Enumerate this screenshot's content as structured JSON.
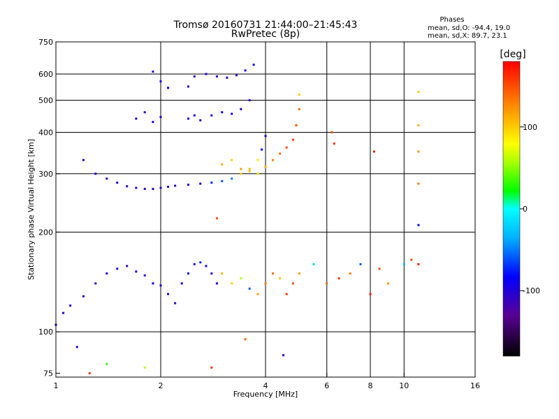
{
  "chart_data": {
    "type": "scatter",
    "title": "Tromsø 20160731 21:44:00–21:45:43",
    "subtitle": "RwPretec (8p)",
    "stats": {
      "header": "Phases",
      "line_o": "mean, sd,O: -94.4, 19.0",
      "line_x": "mean, sd,X:  89.7, 23.1"
    },
    "xlabel": "Frequency [MHz]",
    "ylabel": "Stationary phase Virtual Height [km]",
    "x_scale": "log",
    "y_scale": "log",
    "xlim": [
      1,
      16
    ],
    "ylim": [
      73,
      750
    ],
    "x_ticks": [
      1,
      2,
      4,
      6,
      8,
      10,
      16
    ],
    "x_tick_labels": [
      "1",
      "2",
      "4",
      "6",
      "8",
      "10",
      "16"
    ],
    "y_ticks": [
      75,
      100,
      200,
      300,
      400,
      500,
      600,
      750
    ],
    "y_tick_labels": [
      "75",
      "100",
      "200",
      "300",
      "400",
      "500",
      "600",
      "750"
    ],
    "x_grid": [
      2,
      4,
      6,
      8,
      10
    ],
    "y_grid": [
      100,
      200,
      300,
      400,
      500,
      600
    ],
    "colorbar": {
      "label": "[deg]",
      "range": [
        -180,
        180
      ],
      "ticks": [
        100,
        0,
        -100
      ],
      "tick_labels": [
        "100",
        "0",
        "-100"
      ]
    },
    "series": [
      {
        "x": [
          1.0,
          1.05,
          1.1,
          1.2,
          1.3,
          1.4,
          1.5,
          1.6,
          1.7,
          1.8,
          1.9,
          2.0,
          2.1,
          2.2,
          2.3,
          2.4,
          2.5,
          2.6,
          2.7,
          2.8,
          2.9
        ],
        "y": [
          105,
          114,
          120,
          128,
          140,
          150,
          155,
          158,
          152,
          148,
          140,
          138,
          130,
          122,
          140,
          150,
          160,
          162,
          158,
          150,
          140
        ],
        "phase": [
          -95,
          -100,
          -90,
          -100,
          -105,
          -98,
          -92,
          -110,
          -96,
          -100,
          -88,
          -95,
          -100,
          -102,
          -90,
          -85,
          -80,
          -70,
          -95,
          -100,
          -90
        ]
      },
      {
        "x": [
          1.2,
          1.3,
          1.4,
          1.5,
          1.6,
          1.7,
          1.8,
          1.9,
          2.0,
          2.1,
          2.2,
          2.4,
          2.6,
          2.8,
          3.0,
          3.2,
          3.4,
          3.6,
          3.8,
          3.9,
          4.0
        ],
        "y": [
          330,
          300,
          290,
          282,
          275,
          272,
          270,
          270,
          272,
          274,
          276,
          278,
          280,
          282,
          285,
          290,
          300,
          310,
          330,
          355,
          390
        ],
        "phase": [
          -100,
          -98,
          -102,
          -95,
          -100,
          -97,
          -104,
          -99,
          -96,
          -98,
          -100,
          -95,
          -90,
          -70,
          -60,
          -50,
          100,
          110,
          90,
          -80,
          -95
        ]
      },
      {
        "x": [
          1.9,
          2.0,
          2.1,
          2.4,
          2.5,
          2.7,
          2.9,
          3.1,
          3.3,
          3.5,
          3.7
        ],
        "y": [
          610,
          570,
          545,
          550,
          590,
          600,
          590,
          585,
          595,
          615,
          640
        ],
        "phase": [
          -100,
          -95,
          -90,
          -100,
          -105,
          -98,
          -90,
          -95,
          -100,
          -92,
          -96
        ]
      },
      {
        "x": [
          1.7,
          1.8,
          1.9,
          2.0,
          2.4,
          2.5,
          2.6,
          2.8,
          3.0,
          3.2,
          3.4,
          3.6
        ],
        "y": [
          440,
          460,
          430,
          445,
          440,
          450,
          435,
          450,
          460,
          455,
          470,
          500
        ],
        "phase": [
          -95,
          -100,
          -92,
          -98,
          -90,
          -95,
          -100,
          -90,
          -85,
          -92,
          -96,
          -100
        ]
      },
      {
        "x": [
          3.0,
          3.2,
          3.4,
          3.6,
          3.8,
          4.0,
          4.2,
          4.4,
          4.6,
          4.8,
          4.9,
          5.0,
          5.0
        ],
        "y": [
          320,
          330,
          310,
          305,
          300,
          315,
          330,
          345,
          360,
          380,
          420,
          470,
          520
        ],
        "phase": [
          110,
          100,
          120,
          105,
          90,
          110,
          130,
          140,
          150,
          160,
          150,
          140,
          100
        ]
      },
      {
        "x": [
          3.0,
          3.2,
          3.4,
          3.6,
          3.8,
          4.0,
          4.2,
          4.4,
          4.6,
          4.8,
          5.0,
          5.5,
          6.0,
          6.5,
          7.0,
          7.5,
          8.0,
          8.5,
          9.0,
          10.0,
          10.5,
          11.0
        ],
        "y": [
          150,
          140,
          145,
          135,
          130,
          140,
          150,
          145,
          130,
          140,
          150,
          160,
          140,
          145,
          150,
          160,
          130,
          155,
          140,
          160,
          165,
          160
        ],
        "phase": [
          110,
          100,
          60,
          -60,
          120,
          130,
          140,
          100,
          160,
          150,
          120,
          -20,
          140,
          160,
          130,
          -60,
          170,
          150,
          120,
          -30,
          150,
          170
        ]
      },
      {
        "x": [
          11.0,
          11.0,
          11.0,
          11.0,
          11.0,
          6.2,
          6.3,
          8.2,
          4.5,
          3.5,
          2.9,
          1.15,
          1.4,
          1.25,
          1.8,
          2.8
        ],
        "y": [
          530,
          420,
          350,
          280,
          210,
          400,
          370,
          350,
          85,
          95,
          220,
          90,
          80,
          75,
          78,
          78
        ],
        "phase": [
          100,
          110,
          120,
          130,
          -80,
          150,
          160,
          170,
          -100,
          140,
          150,
          -100,
          30,
          160,
          60,
          160
        ]
      }
    ]
  }
}
